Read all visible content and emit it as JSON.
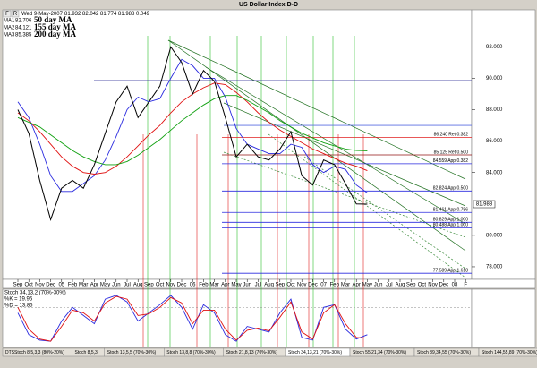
{
  "window": {
    "title": "US Dollar Index  D-D",
    "buttons": [
      "F",
      "R"
    ],
    "date": "Wed 9-May-2007",
    "quote": [
      "81.932",
      "82.042",
      "81.774",
      "81.988",
      "0.049"
    ]
  },
  "chart_data": [
    {
      "type": "line",
      "categories": [
        "Sep",
        "Oct",
        "Nov",
        "Dec",
        "05",
        "Feb",
        "Mar",
        "Apr",
        "May",
        "Jun",
        "Jul",
        "Aug",
        "Sep",
        "Oct",
        "Nov",
        "Dec",
        "06",
        "Feb",
        "Mar",
        "Apr",
        "May",
        "Jun",
        "Jul",
        "Aug",
        "Sep",
        "Oct",
        "Nov",
        "Dec",
        "07",
        "Feb",
        "Mar",
        "Apr",
        "May",
        "Jun",
        "Jul",
        "Aug",
        "Sep",
        "Oct",
        "Nov",
        "Dec",
        "08",
        "F"
      ],
      "price": {
        "color": "#000000",
        "values": [
          88.0,
          86.5,
          83.5,
          81.0,
          83.0,
          83.5,
          83.0,
          84.5,
          86.5,
          88.5,
          89.5,
          87.5,
          88.5,
          89.5,
          92.0,
          91.0,
          89.0,
          90.5,
          89.8,
          87.5,
          85.0,
          85.8,
          85.0,
          84.8,
          85.5,
          86.6,
          83.8,
          83.2,
          84.8,
          84.5,
          83.3,
          82.0,
          81.988,
          null,
          null,
          null,
          null,
          null,
          null,
          null,
          null,
          null
        ]
      },
      "series": [
        {
          "name": "50 day MA",
          "tag": "MA1",
          "last": 82.706,
          "color": "#2a2adf",
          "values": [
            88.5,
            87.5,
            85.8,
            83.8,
            82.8,
            82.8,
            83.3,
            83.8,
            84.8,
            86.3,
            88.0,
            88.8,
            88.5,
            88.7,
            90.0,
            91.2,
            90.8,
            90.0,
            90.0,
            88.8,
            86.8,
            85.8,
            85.5,
            85.2,
            85.2,
            85.8,
            85.6,
            84.5,
            84.0,
            84.4,
            84.2,
            83.2,
            82.706,
            null,
            null,
            null,
            null,
            null,
            null,
            null,
            null,
            null
          ]
        },
        {
          "name": "155 day MA",
          "tag": "MA2",
          "last": 84.121,
          "color": "#e01010",
          "values": [
            87.8,
            87.3,
            86.6,
            85.8,
            85.0,
            84.4,
            84.0,
            83.9,
            84.0,
            84.4,
            85.0,
            85.7,
            86.4,
            87.0,
            87.8,
            88.5,
            89.0,
            89.4,
            89.7,
            89.6,
            89.1,
            88.5,
            87.8,
            87.2,
            86.7,
            86.3,
            85.9,
            85.5,
            85.2,
            84.9,
            84.6,
            84.4,
            84.121,
            null,
            null,
            null,
            null,
            null,
            null,
            null,
            null,
            null
          ]
        },
        {
          "name": "200 day MA",
          "tag": "MA3",
          "last": 85.385,
          "color": "#10a010",
          "values": [
            87.5,
            87.2,
            86.9,
            86.4,
            85.9,
            85.4,
            85.0,
            84.7,
            84.5,
            84.5,
            84.7,
            85.1,
            85.6,
            86.1,
            86.7,
            87.3,
            87.8,
            88.3,
            88.7,
            88.9,
            88.9,
            88.6,
            88.2,
            87.8,
            87.3,
            86.9,
            86.5,
            86.2,
            85.9,
            85.7,
            85.5,
            85.4,
            85.385,
            null,
            null,
            null,
            null,
            null,
            null,
            null,
            null,
            null
          ]
        }
      ],
      "ylim": [
        77.2,
        94.3
      ],
      "yticks": [
        {
          "value": 78,
          "label": "78.000"
        },
        {
          "value": 80,
          "label": "80.000"
        },
        {
          "value": 84,
          "label": "84.000"
        },
        {
          "value": 86,
          "label": "86.000"
        },
        {
          "value": 88,
          "label": "88.000"
        },
        {
          "value": 90,
          "label": "90.000"
        },
        {
          "value": 92,
          "label": "92.000"
        }
      ],
      "last_price": 81.988,
      "levels": [
        {
          "value": 89.85,
          "color": "#1f1f8f"
        },
        {
          "value": 87.0,
          "color": "#5a6ee0"
        },
        {
          "value": 86.24,
          "label": "86.240 Ret 0.382",
          "color": "#e02020"
        },
        {
          "value": 85.125,
          "label": "85.125 Ret 0.500",
          "color": "#901010"
        },
        {
          "value": 84.559,
          "label": "84.559 App 0.382",
          "color": "#2a2adf"
        },
        {
          "value": 82.824,
          "label": "82.824 App 0.500",
          "color": "#2a2adf"
        },
        {
          "value": 81.461,
          "label": "81.461 App 0.786",
          "color": "#2a2adf"
        },
        {
          "value": 80.829,
          "label": "80.829 App 1.000",
          "color": "#2a2adf"
        },
        {
          "value": 80.488,
          "label": "80.488 App 1.000",
          "color": "#2a2adf"
        },
        {
          "value": 77.589,
          "label": "77.589 App 1.618",
          "color": "#2a2adf"
        }
      ]
    },
    {
      "type": "line",
      "title": "Stoch 34,13,2 (70%-30%)",
      "series": [
        {
          "name": "%K = 19.96",
          "color": "#2a2adf",
          "values": [
            60,
            20,
            10,
            8,
            45,
            70,
            55,
            40,
            85,
            92,
            80,
            45,
            60,
            75,
            92,
            70,
            30,
            75,
            60,
            20,
            8,
            35,
            30,
            25,
            60,
            85,
            15,
            10,
            70,
            75,
            30,
            12,
            19.96,
            null,
            null,
            null,
            null,
            null,
            null,
            null,
            null,
            null
          ]
        },
        {
          "name": "%D = 13.85",
          "color": "#e01010",
          "values": [
            70,
            30,
            12,
            8,
            35,
            65,
            60,
            45,
            78,
            90,
            85,
            55,
            58,
            70,
            88,
            78,
            40,
            65,
            65,
            30,
            10,
            28,
            32,
            27,
            52,
            80,
            25,
            12,
            60,
            75,
            40,
            15,
            13.85,
            null,
            null,
            null,
            null,
            null,
            null,
            null,
            null,
            null
          ]
        }
      ],
      "ylim": [
        0,
        100
      ],
      "levels": [
        70,
        30
      ]
    }
  ],
  "tabs": [
    "DTSStoch 8,5,3,3 (80%-20%)",
    "Stoch 8,5,3",
    "Stoch 13,5,5 (70%-30%)",
    "Stoch 13,8,8 (70%-30%)",
    "Stoch 21,8,13 (70%-30%)",
    "Stoch 34,13,21 (70%-30%)",
    "Stoch 55,21,34 (70%-30%)",
    "Stoch 89,34,55 (70%-30%)",
    "Stoch 144,55,89 (70%-30%)"
  ]
}
